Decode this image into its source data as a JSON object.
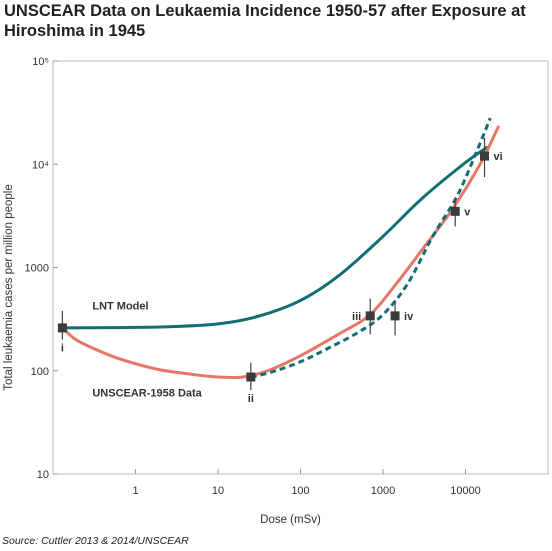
{
  "title": "UNSCEAR Data on Leukaemia Incidence 1950-57 after Exposure at Hiroshima in 1945",
  "source": "Source: Cuttler 2013 & 2014/UNSCEAR",
  "chart_data": {
    "type": "line",
    "xlabel": "Dose (mSv)",
    "ylabel": "Total leukaemia cases per million people",
    "x_scale": "log",
    "y_scale": "log",
    "xlim": [
      0.1,
      100000
    ],
    "ylim": [
      10,
      100000
    ],
    "x_ticks": [
      {
        "value": 1,
        "label": "1"
      },
      {
        "value": 10,
        "label": "10"
      },
      {
        "value": 100,
        "label": "100"
      },
      {
        "value": 1000,
        "label": "1000"
      },
      {
        "value": 10000,
        "label": "10000"
      }
    ],
    "y_ticks": [
      {
        "value": 10,
        "label": "10"
      },
      {
        "value": 100,
        "label": "100"
      },
      {
        "value": 1000,
        "label": "1000"
      },
      {
        "value": 10000,
        "label": "10⁴"
      },
      {
        "value": 100000,
        "label": "10⁵"
      }
    ],
    "grid": false,
    "colors": {
      "lnt": "#116e73",
      "unscear": "#e57766",
      "points": "#3a3a3a"
    },
    "series": [
      {
        "name": "LNT Model",
        "style": "solid",
        "color": "#116e73",
        "x": [
          0.13,
          0.3,
          1,
          3,
          10,
          30,
          100,
          300,
          1000,
          3000,
          10000,
          18000
        ],
        "y": [
          260,
          261,
          263,
          268,
          284,
          335,
          480,
          850,
          2000,
          4700,
          10400,
          14500
        ]
      },
      {
        "name": "UNSCEAR-1958 Data",
        "style": "solid",
        "color": "#e57766",
        "x": [
          0.13,
          0.2,
          0.5,
          1,
          2,
          5,
          10,
          20,
          40,
          100,
          300,
          700,
          1500,
          3000,
          7000,
          15000,
          25000
        ],
        "y": [
          260,
          195,
          140,
          117,
          102,
          92,
          87,
          87,
          100,
          140,
          230,
          350,
          720,
          1500,
          3700,
          10000,
          23000
        ]
      },
      {
        "name": "",
        "style": "dashed",
        "color": "#116e73",
        "x": [
          25,
          50,
          100,
          200,
          500,
          1000,
          2000,
          4000,
          8000,
          14000,
          20000
        ],
        "y": [
          86,
          100,
          122,
          160,
          235,
          350,
          700,
          2000,
          5000,
          14000,
          28000
        ]
      }
    ],
    "points": [
      {
        "label": "i",
        "x": 0.13,
        "y": 260,
        "err_low": 200,
        "err_high": 380,
        "label_pos": "below"
      },
      {
        "label": "ii",
        "x": 25,
        "y": 87,
        "err_low": 65,
        "err_high": 120,
        "label_pos": "below"
      },
      {
        "label": "iii",
        "x": 700,
        "y": 340,
        "err_low": 225,
        "err_high": 500,
        "label_pos": "left"
      },
      {
        "label": "iv",
        "x": 1400,
        "y": 340,
        "err_low": 220,
        "err_high": 480,
        "label_pos": "right"
      },
      {
        "label": "v",
        "x": 7500,
        "y": 3500,
        "err_low": 2500,
        "err_high": 4700,
        "label_pos": "right"
      },
      {
        "label": "vi",
        "x": 17000,
        "y": 12000,
        "err_low": 7500,
        "err_high": 18000,
        "label_pos": "right"
      }
    ],
    "annotations": [
      {
        "text": "LNT Model",
        "x": 0.3,
        "y": 390
      },
      {
        "text": "UNSCEAR-1958 Data",
        "x": 0.3,
        "y": 56
      }
    ]
  }
}
